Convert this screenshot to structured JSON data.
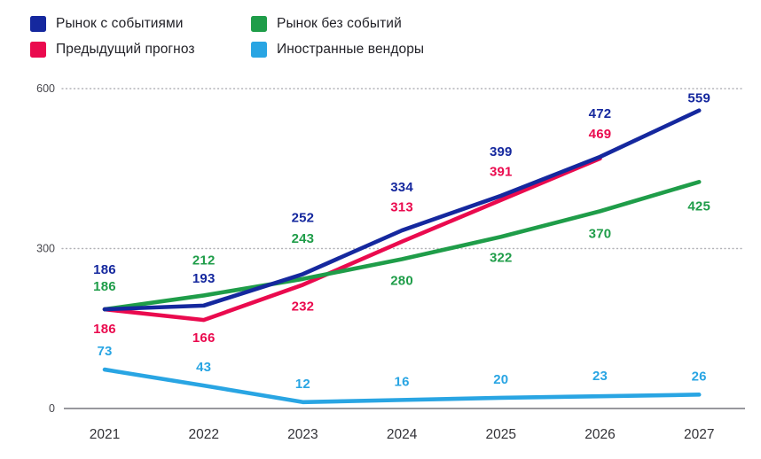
{
  "chart_data": {
    "type": "line",
    "x": [
      "2021",
      "2022",
      "2023",
      "2024",
      "2025",
      "2026",
      "2027"
    ],
    "series": [
      {
        "name": "Рынок с событиями",
        "color": "#15289E",
        "values": [
          186,
          193,
          252,
          334,
          399,
          472,
          559
        ]
      },
      {
        "name": "Предыдущий прогноз",
        "color": "#EA0A4E",
        "values": [
          186,
          166,
          232,
          313,
          391,
          469
        ]
      },
      {
        "name": "Рынок без событий",
        "color": "#1F9D49",
        "values": [
          186,
          212,
          243,
          280,
          322,
          370,
          425
        ]
      },
      {
        "name": "Иностранные вендоры",
        "color": "#29A5E3",
        "values": [
          73,
          43,
          12,
          16,
          20,
          23,
          26
        ]
      }
    ],
    "ylim": [
      0,
      600
    ],
    "yticks": [
      0,
      300,
      600
    ],
    "grid": "dotted horizontal gridlines at 300 and 600, solid axis line at 0",
    "legend_position": "top-left, two columns",
    "value_labels": true
  }
}
